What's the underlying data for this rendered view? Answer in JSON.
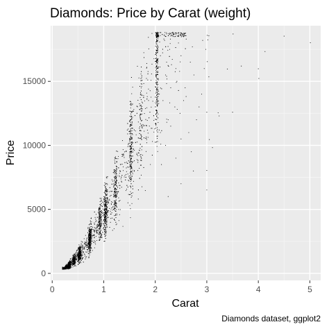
{
  "chart_data": {
    "type": "scatter",
    "title": "Diamonds: Price by Carat (weight)",
    "xlabel": "Carat",
    "ylabel": "Price",
    "caption": "Diamonds dataset, ggplot2",
    "xlim": [
      -0.03,
      5.21
    ],
    "ylim": [
      -550,
      19350
    ],
    "x_ticks": [
      0,
      1,
      2,
      3,
      4,
      5
    ],
    "x_tick_labels": [
      "0",
      "1",
      "2",
      "3",
      "4",
      "5"
    ],
    "y_ticks": [
      0,
      5000,
      10000,
      15000
    ],
    "y_tick_labels": [
      "0",
      "5000",
      "10000",
      "15000"
    ],
    "grid": true,
    "legend": "none",
    "colors": {
      "panel": "#ebebeb",
      "grid_major": "#ffffff",
      "grid_minor": "#f5f5f5",
      "points": "#000000",
      "tick_label": "#4d4d4d",
      "tick_mark": "#333333"
    },
    "points": [
      [
        5.01,
        18018
      ],
      [
        4.5,
        18531
      ],
      [
        4.13,
        17329
      ],
      [
        4.01,
        15223
      ],
      [
        4.0,
        15984
      ],
      [
        3.67,
        16193
      ],
      [
        3.51,
        18701
      ],
      [
        3.5,
        12587
      ],
      [
        3.4,
        15964
      ],
      [
        3.24,
        12300
      ],
      [
        3.22,
        12545
      ],
      [
        3.11,
        9823
      ],
      [
        3.05,
        10453
      ],
      [
        3.04,
        18559
      ],
      [
        3.04,
        15354
      ],
      [
        3.02,
        18242
      ],
      [
        3.01,
        18593
      ],
      [
        3.01,
        16538
      ],
      [
        3.0,
        12587
      ],
      [
        3.0,
        6512
      ],
      [
        3.0,
        8040
      ],
      [
        2.98,
        17500
      ],
      [
        2.95,
        16000
      ],
      [
        2.92,
        18200
      ],
      [
        2.9,
        14000
      ],
      [
        2.85,
        13000
      ],
      [
        2.8,
        12000
      ],
      [
        2.75,
        15500
      ],
      [
        2.74,
        8000
      ],
      [
        2.72,
        17700
      ],
      [
        2.7,
        9500
      ],
      [
        2.68,
        16500
      ],
      [
        2.65,
        11000
      ],
      [
        2.6,
        18300
      ],
      [
        2.58,
        14500
      ],
      [
        2.55,
        13500
      ],
      [
        2.5,
        7000
      ],
      [
        2.5,
        10500
      ],
      [
        2.5,
        17000
      ],
      [
        2.48,
        12500
      ],
      [
        2.45,
        18000
      ],
      [
        2.42,
        15000
      ],
      [
        2.4,
        9000
      ],
      [
        2.4,
        16000
      ],
      [
        2.38,
        13000
      ],
      [
        2.35,
        18500
      ],
      [
        2.3,
        11500
      ],
      [
        2.3,
        14500
      ],
      [
        2.28,
        17500
      ],
      [
        2.25,
        6000
      ],
      [
        2.25,
        12000
      ],
      [
        2.22,
        16500
      ],
      [
        2.2,
        10000
      ],
      [
        2.2,
        15500
      ],
      [
        2.18,
        18200
      ],
      [
        2.15,
        13500
      ],
      [
        2.12,
        8500
      ],
      [
        2.1,
        11000
      ],
      [
        2.1,
        17000
      ],
      [
        2.08,
        14000
      ]
    ]
  }
}
